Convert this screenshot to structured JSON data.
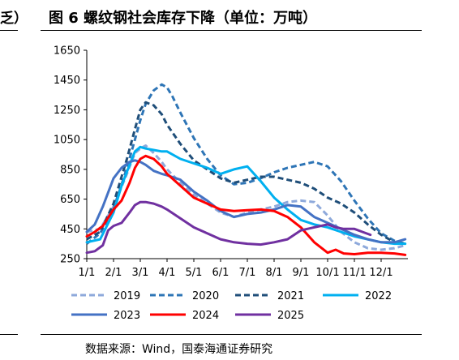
{
  "header": {
    "left_fragment": "乏）",
    "title": "图 6 螺纹钢社会库存下降（单位：万吨）"
  },
  "source": "数据来源：Wind，国泰海通证券研究",
  "chart_data": {
    "type": "line",
    "title": "图 6 螺纹钢社会库存下降（单位：万吨）",
    "unit": "万吨",
    "xlabel": "",
    "ylabel": "",
    "ylim": [
      250,
      1650
    ],
    "yticks": [
      250,
      450,
      650,
      850,
      1050,
      1250,
      1450,
      1650
    ],
    "xlim": [
      1,
      13
    ],
    "xticks": [
      {
        "value": 1,
        "label": "1/1"
      },
      {
        "value": 2,
        "label": "2/1"
      },
      {
        "value": 3,
        "label": "3/1"
      },
      {
        "value": 4,
        "label": "4/1"
      },
      {
        "value": 5,
        "label": "5/1"
      },
      {
        "value": 6,
        "label": "6/1"
      },
      {
        "value": 7,
        "label": "7/1"
      },
      {
        "value": 8,
        "label": "8/1"
      },
      {
        "value": 9,
        "label": "9/1"
      },
      {
        "value": 10,
        "label": "10/1"
      },
      {
        "value": 11,
        "label": "11/1"
      },
      {
        "value": 12,
        "label": "12/1"
      }
    ],
    "grid": false,
    "legend_position": "bottom",
    "series": [
      {
        "name": "2019",
        "color": "#8EA9DB",
        "dash": "dashed",
        "x": [
          1.0,
          1.5,
          2.0,
          2.5,
          2.8,
          3.0,
          3.2,
          3.5,
          3.8,
          4.0,
          4.5,
          5.0,
          5.5,
          6.0,
          6.5,
          7.0,
          7.5,
          8.0,
          8.5,
          9.0,
          9.5,
          10.0,
          10.5,
          11.0,
          11.5,
          12.0,
          12.5,
          12.9
        ],
        "y": [
          430,
          450,
          600,
          820,
          960,
          990,
          1010,
          960,
          900,
          850,
          760,
          680,
          620,
          560,
          530,
          560,
          580,
          600,
          630,
          640,
          630,
          540,
          430,
          360,
          320,
          310,
          320,
          340
        ]
      },
      {
        "name": "2020",
        "color": "#2E75B6",
        "dash": "dashed",
        "x": [
          1.0,
          1.5,
          2.0,
          2.5,
          2.8,
          3.0,
          3.2,
          3.5,
          3.8,
          4.0,
          4.2,
          4.5,
          5.0,
          5.5,
          6.0,
          6.5,
          7.0,
          7.5,
          8.0,
          8.5,
          9.0,
          9.5,
          10.0,
          10.5,
          11.0,
          11.5,
          12.0,
          12.5,
          12.9
        ],
        "y": [
          350,
          420,
          580,
          860,
          1050,
          1180,
          1290,
          1380,
          1420,
          1400,
          1340,
          1230,
          1060,
          920,
          810,
          750,
          760,
          790,
          830,
          860,
          880,
          900,
          870,
          770,
          640,
          520,
          420,
          370,
          350
        ]
      },
      {
        "name": "2021",
        "color": "#1F4E79",
        "dash": "dashed",
        "x": [
          1.0,
          1.5,
          2.0,
          2.5,
          2.8,
          3.0,
          3.2,
          3.5,
          3.8,
          4.0,
          4.5,
          5.0,
          5.5,
          6.0,
          6.5,
          7.0,
          7.5,
          8.0,
          8.5,
          9.0,
          9.5,
          10.0,
          10.5,
          11.0,
          11.5,
          12.0,
          12.5,
          12.9
        ],
        "y": [
          380,
          430,
          620,
          920,
          1120,
          1250,
          1300,
          1280,
          1220,
          1150,
          1020,
          910,
          850,
          790,
          760,
          780,
          800,
          800,
          780,
          760,
          720,
          660,
          620,
          560,
          480,
          410,
          360,
          350
        ]
      },
      {
        "name": "2022",
        "color": "#00B0F0",
        "dash": "solid",
        "x": [
          1.0,
          1.5,
          2.0,
          2.3,
          2.6,
          2.8,
          3.0,
          3.2,
          3.5,
          3.8,
          4.0,
          4.5,
          5.0,
          5.5,
          6.0,
          6.5,
          7.0,
          7.5,
          8.0,
          8.5,
          9.0,
          9.5,
          10.0,
          10.5,
          11.0,
          11.5,
          12.0,
          12.5,
          12.9
        ],
        "y": [
          360,
          380,
          560,
          740,
          880,
          970,
          1000,
          990,
          980,
          970,
          970,
          920,
          890,
          860,
          820,
          850,
          870,
          770,
          660,
          580,
          510,
          480,
          460,
          430,
          400,
          380,
          360,
          350,
          350
        ]
      },
      {
        "name": "2023",
        "color": "#4472C4",
        "dash": "solid",
        "x": [
          1.0,
          1.3,
          1.6,
          2.0,
          2.3,
          2.6,
          2.8,
          3.0,
          3.2,
          3.5,
          3.8,
          4.0,
          4.5,
          5.0,
          5.5,
          6.0,
          6.5,
          7.0,
          7.5,
          8.0,
          8.5,
          9.0,
          9.5,
          10.0,
          10.5,
          11.0,
          11.5,
          12.0,
          12.5,
          12.9
        ],
        "y": [
          430,
          480,
          600,
          790,
          860,
          900,
          910,
          900,
          880,
          840,
          820,
          810,
          780,
          700,
          640,
          570,
          530,
          550,
          560,
          580,
          610,
          600,
          530,
          490,
          450,
          410,
          380,
          360,
          360,
          380
        ]
      },
      {
        "name": "2024",
        "color": "#FF0000",
        "dash": "solid",
        "x": [
          1.0,
          1.3,
          1.6,
          2.0,
          2.3,
          2.6,
          2.8,
          3.0,
          3.2,
          3.5,
          3.8,
          4.0,
          4.5,
          5.0,
          5.5,
          6.0,
          6.5,
          7.0,
          7.5,
          8.0,
          8.5,
          9.0,
          9.5,
          10.0,
          10.3,
          10.6,
          11.0,
          11.5,
          12.0,
          12.5,
          12.9
        ],
        "y": [
          400,
          430,
          470,
          580,
          640,
          760,
          860,
          920,
          940,
          920,
          870,
          820,
          740,
          660,
          620,
          580,
          570,
          575,
          580,
          570,
          530,
          460,
          360,
          290,
          310,
          285,
          280,
          290,
          290,
          285,
          275
        ]
      },
      {
        "name": "2025",
        "color": "#7030A0",
        "dash": "solid",
        "x": [
          1.0,
          1.3,
          1.6,
          1.8,
          2.0,
          2.3,
          2.6,
          2.8,
          3.0,
          3.2,
          3.5,
          3.8,
          4.0,
          4.5,
          5.0,
          5.5,
          6.0,
          6.5,
          7.0,
          7.5,
          8.0,
          8.5,
          9.0,
          9.5,
          10.0,
          10.3,
          10.6,
          11.0,
          11.3,
          11.6
        ],
        "y": [
          290,
          300,
          340,
          440,
          470,
          490,
          560,
          610,
          630,
          630,
          620,
          600,
          580,
          520,
          460,
          420,
          380,
          360,
          350,
          345,
          360,
          380,
          440,
          460,
          480,
          460,
          450,
          450,
          430,
          410
        ]
      }
    ]
  }
}
